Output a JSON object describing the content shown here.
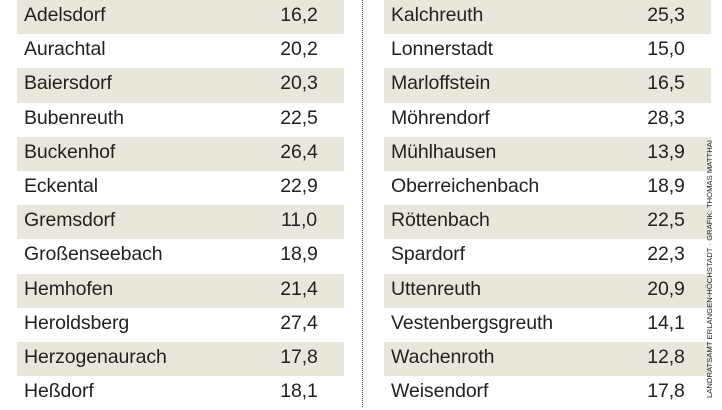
{
  "chart_data": {
    "type": "table",
    "rows_left": [
      {
        "name": "Adelsdorf",
        "value": "16,2"
      },
      {
        "name": "Aurachtal",
        "value": "20,2"
      },
      {
        "name": "Baiersdorf",
        "value": "20,3"
      },
      {
        "name": "Bubenreuth",
        "value": "22,5"
      },
      {
        "name": "Buckenhof",
        "value": "26,4"
      },
      {
        "name": "Eckental",
        "value": "22,9"
      },
      {
        "name": "Gremsdorf",
        "value": "11,0"
      },
      {
        "name": "Großenseebach",
        "value": "18,9"
      },
      {
        "name": "Hemhofen",
        "value": "21,4"
      },
      {
        "name": "Heroldsberg",
        "value": "27,4"
      },
      {
        "name": "Herzogenaurach",
        "value": "17,8"
      },
      {
        "name": "Heßdorf",
        "value": "18,1"
      }
    ],
    "rows_right": [
      {
        "name": "Kalchreuth",
        "value": "25,3"
      },
      {
        "name": "Lonnerstadt",
        "value": "15,0"
      },
      {
        "name": "Marloffstein",
        "value": "16,5"
      },
      {
        "name": "Möhrendorf",
        "value": "28,3"
      },
      {
        "name": "Mühlhausen",
        "value": "13,9"
      },
      {
        "name": "Oberreichenbach",
        "value": "18,9"
      },
      {
        "name": "Röttenbach",
        "value": "22,5"
      },
      {
        "name": "Spardorf",
        "value": "22,3"
      },
      {
        "name": "Uttenreuth",
        "value": "20,9"
      },
      {
        "name": "Vestenbergsgreuth",
        "value": "14,1"
      },
      {
        "name": "Wachenroth",
        "value": "12,8"
      },
      {
        "name": "Weisendorf",
        "value": "17,8"
      }
    ],
    "shading": "alternating-rows",
    "shade_color": "#e9e7dc"
  },
  "credit": "LANDRATSAMT ERLANGEN-HÖCHSTADT · GRAFIK: THOMAS MATTHAI"
}
